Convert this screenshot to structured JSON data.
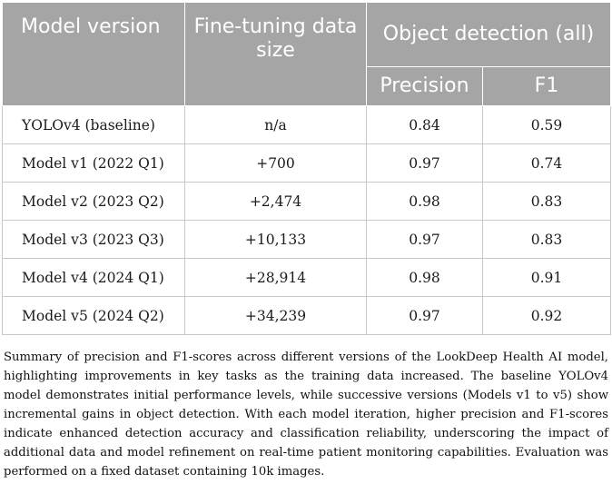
{
  "table": {
    "headers": {
      "model_version": "Model version",
      "fine_tuning_size": "Fine-tuning data size",
      "group": "Object detection (all)",
      "precision": "Precision",
      "f1": "F1"
    },
    "rows": [
      {
        "model": "YOLOv4 (baseline)",
        "size": "n/a",
        "precision": "0.84",
        "f1": "0.59"
      },
      {
        "model": "Model v1 (2022 Q1)",
        "size": "+700",
        "precision": "0.97",
        "f1": "0.74"
      },
      {
        "model": "Model v2 (2023 Q2)",
        "size": "+2,474",
        "precision": "0.98",
        "f1": "0.83"
      },
      {
        "model": "Model v3 (2023 Q3)",
        "size": "+10,133",
        "precision": "0.97",
        "f1": "0.83"
      },
      {
        "model": "Model v4 (2024 Q1)",
        "size": "+28,914",
        "precision": "0.98",
        "f1": "0.91"
      },
      {
        "model": "Model v5 (2024 Q2)",
        "size": "+34,239",
        "precision": "0.97",
        "f1": "0.92"
      }
    ]
  },
  "caption": "Summary of precision and F1-scores across different versions of the LookDeep Health AI model, highlighting improvements in key tasks as the training data increased. The baseline YOLOv4 model demonstrates initial performance levels, while successive versions (Models v1 to v5) show incremental gains in object detection. With each model iteration, higher precision and F1-scores indicate enhanced detection accuracy and classification reliability, underscoring the impact of additional data and model refinement on real-time patient monitoring capabilities. Evaluation was performed on a fixed dataset containing 10k images.",
  "colors": {
    "header_bg": "#a5a5a5",
    "header_text": "#ffffff",
    "border": "#c8c8c8"
  }
}
